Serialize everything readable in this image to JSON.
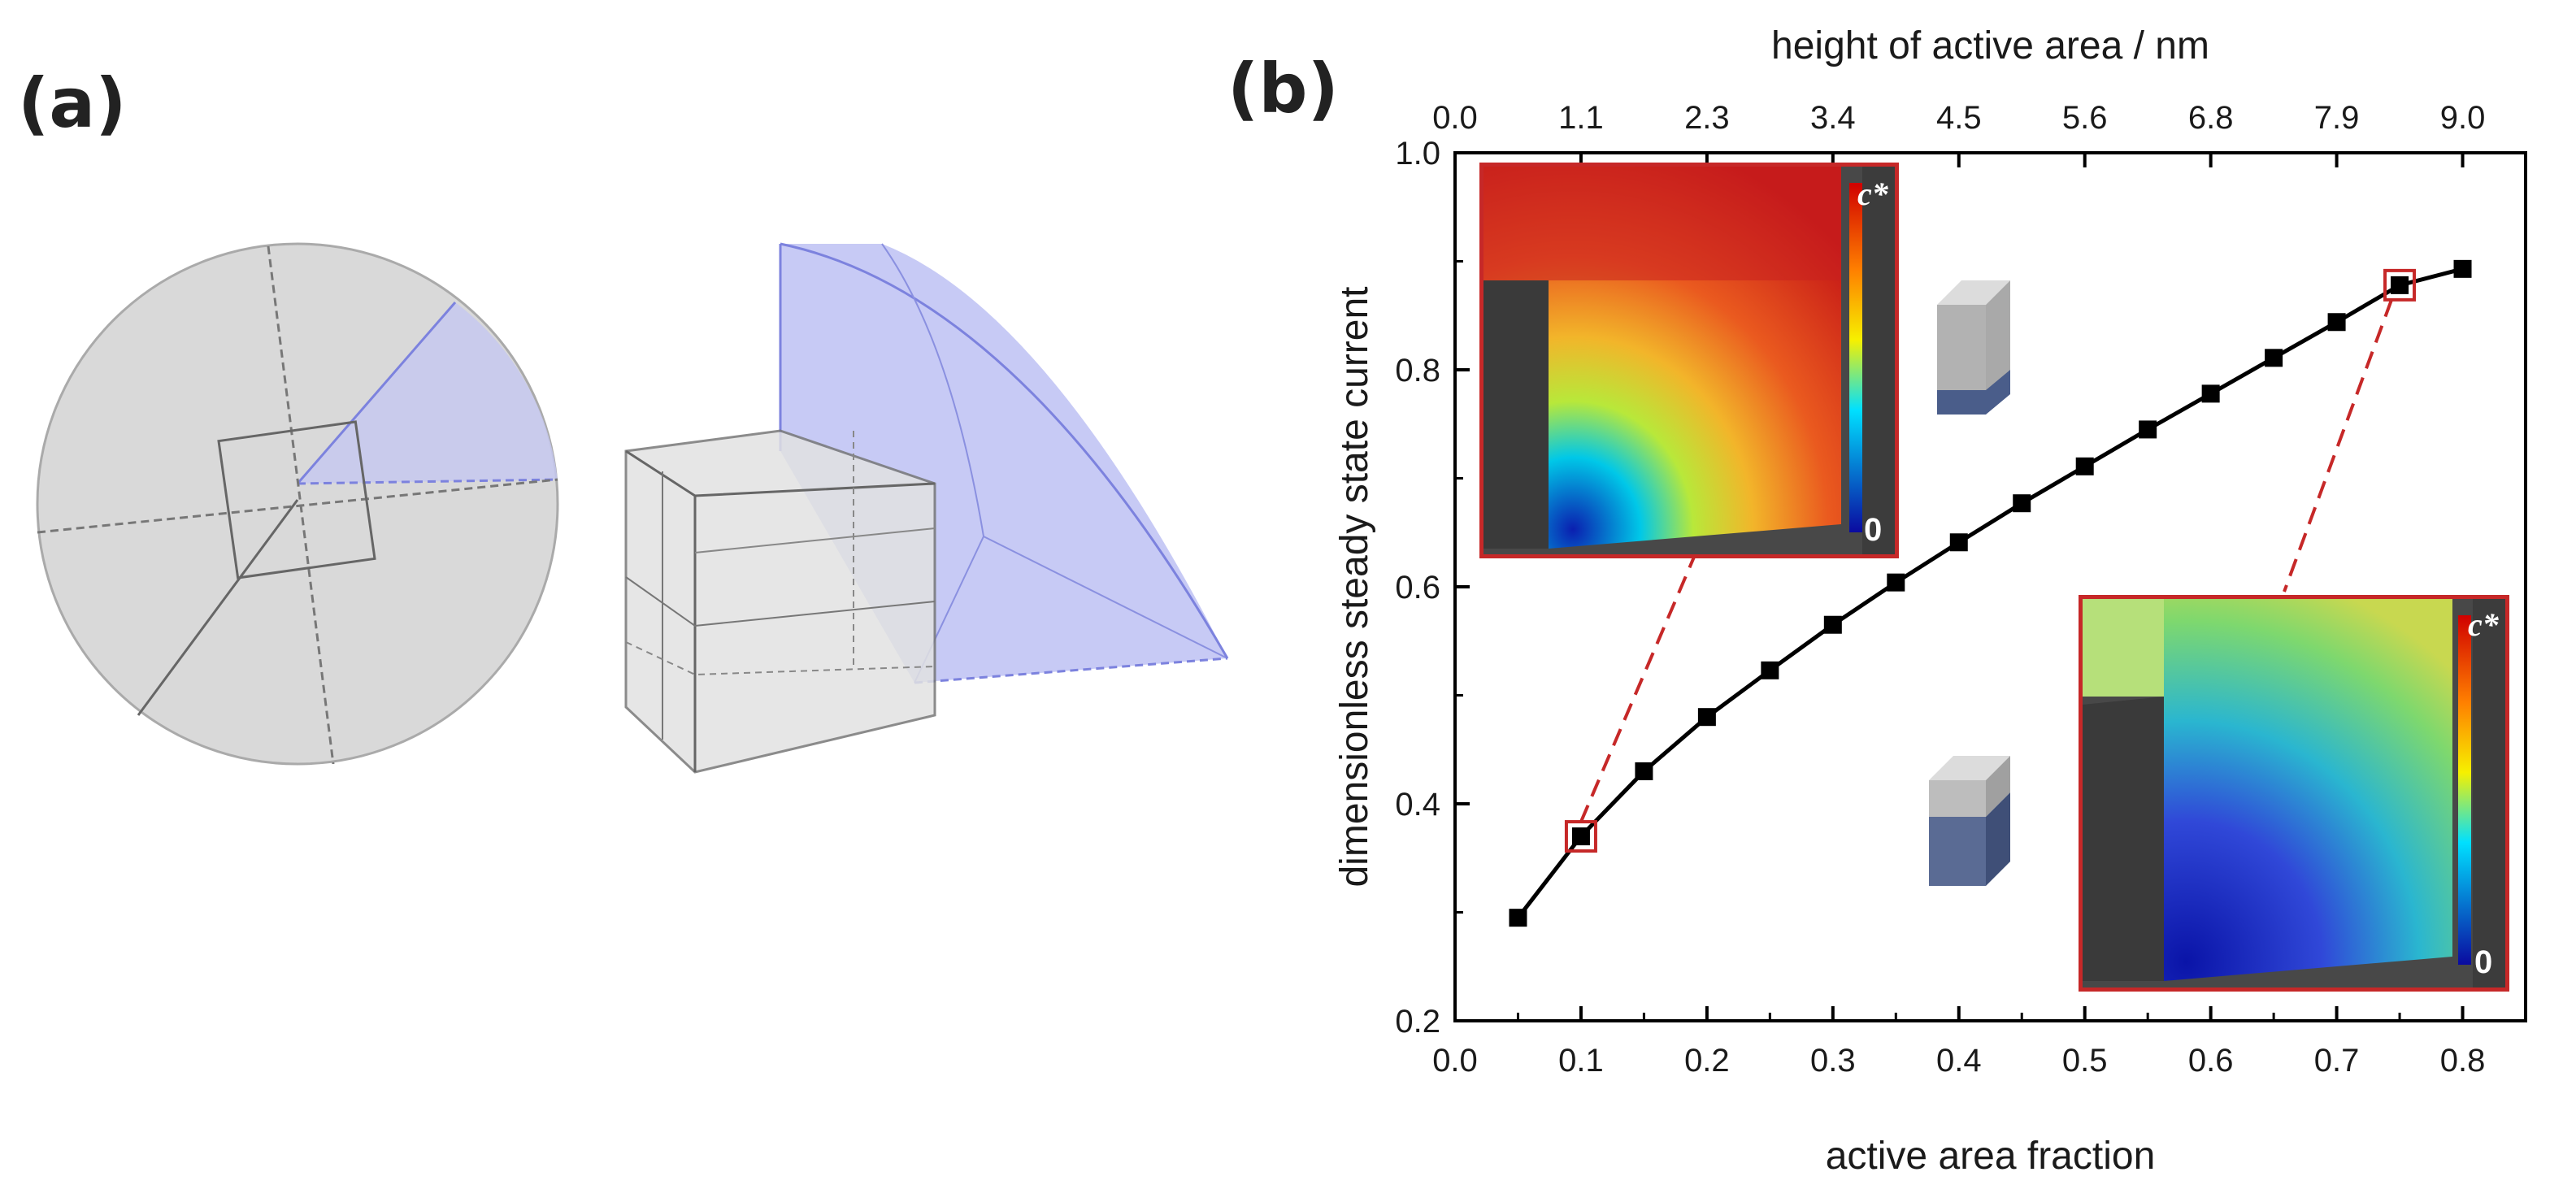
{
  "panel_a": {
    "label": "(a)"
  },
  "panel_b": {
    "label": "(b)",
    "inset_low": {
      "scale_top": "c*",
      "scale_bottom": "0"
    },
    "inset_high": {
      "scale_top": "c*",
      "scale_bottom": "0"
    }
  },
  "colors": {
    "curve": "#000000",
    "highlight": "#c62828",
    "sphere_fill": "#d9d9d9",
    "wedge_fill": "#b9bdf2",
    "wedge_edge": "#7c82de"
  },
  "chart_data": {
    "type": "line",
    "title": "",
    "xlabel": "active area fraction",
    "ylabel": "dimensionless steady state current",
    "x2label": "height of active area / nm",
    "xlim": [
      0.0,
      0.85
    ],
    "ylim": [
      0.2,
      1.0
    ],
    "xticks": [
      "0.0",
      "0.1",
      "0.2",
      "0.3",
      "0.4",
      "0.5",
      "0.6",
      "0.7",
      "0.8"
    ],
    "yticks": [
      "0.2",
      "0.4",
      "0.6",
      "0.8",
      "1.0"
    ],
    "x2ticks": [
      "0.0",
      "1.1",
      "2.3",
      "3.4",
      "4.5",
      "5.6",
      "6.8",
      "7.9",
      "9.0"
    ],
    "series": [
      {
        "name": "steady state current",
        "x": [
          0.05,
          0.1,
          0.15,
          0.2,
          0.25,
          0.3,
          0.35,
          0.4,
          0.45,
          0.5,
          0.55,
          0.6,
          0.65,
          0.7,
          0.75,
          0.8
        ],
        "y": [
          0.295,
          0.37,
          0.43,
          0.48,
          0.523,
          0.565,
          0.604,
          0.641,
          0.677,
          0.711,
          0.745,
          0.778,
          0.811,
          0.844,
          0.878,
          0.893
        ]
      }
    ],
    "highlighted_points": [
      {
        "x": 0.1,
        "y": 0.37
      },
      {
        "x": 0.75,
        "y": 0.878
      }
    ]
  }
}
